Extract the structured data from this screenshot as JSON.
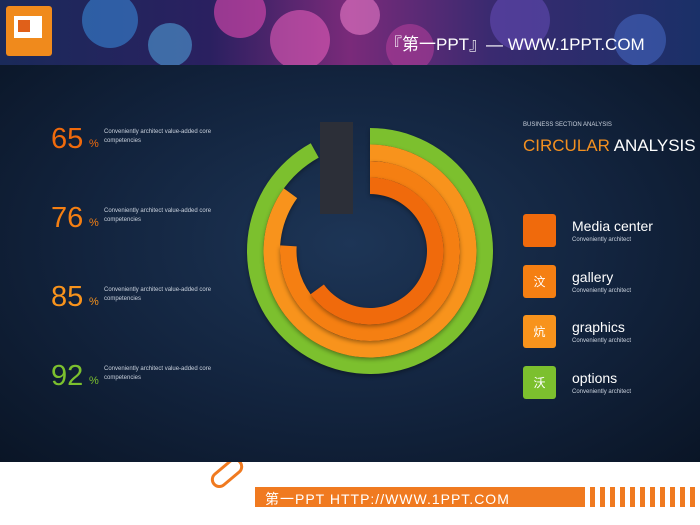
{
  "header": {
    "brand": "『第一PPT』— WWW.1PPT.COM"
  },
  "chart_data": {
    "type": "radial_bar",
    "supertitle": "BUSINESS SECTION ANALYSIS",
    "title_highlight": "CIRCULAR",
    "title_rest": "ANALYSIS",
    "unit": "%",
    "categories": [
      "Media center",
      "gallery",
      "graphics",
      "options"
    ],
    "values": [
      65,
      76,
      85,
      92
    ],
    "colors": [
      "#f06a0c",
      "#f57f12",
      "#f8931c",
      "#7cc02e"
    ],
    "descriptions": [
      "Conveniently architect value-added core competencies",
      "Conveniently architect value-added core competencies",
      "Conveniently architect value-added core competencies",
      "Conveniently architect value-added core competencies"
    ],
    "legend_subtitles": [
      "Conveniently architect",
      "Conveniently architect",
      "Conveniently architect",
      "Conveniently architect"
    ],
    "legend_icons": [
      null,
      "汶",
      "炕",
      "沃"
    ]
  },
  "footer": {
    "text": "第一PPT HTTP://WWW.1PPT.COM"
  }
}
